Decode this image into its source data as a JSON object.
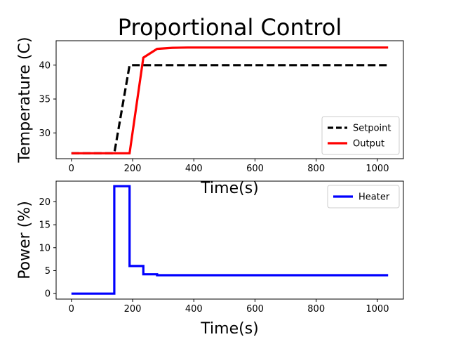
{
  "chart_data": [
    {
      "type": "line",
      "title": "Proportional Control",
      "xlabel": "Time(s)",
      "ylabel": "Temperature (C)",
      "xlim": [
        -50,
        1085
      ],
      "ylim": [
        26.2,
        43.6
      ],
      "xticks": [
        0,
        200,
        400,
        600,
        800,
        1000
      ],
      "yticks": [
        30,
        35,
        40
      ],
      "grid": false,
      "legend_position": "lower-right",
      "series": [
        {
          "name": "Setpoint",
          "color": "#000000",
          "style": "dashed",
          "x": [
            0,
            140,
            190,
            235,
            280,
            1035
          ],
          "y": [
            27,
            27,
            40,
            40,
            40,
            40
          ]
        },
        {
          "name": "Output",
          "color": "#ff0000",
          "style": "solid",
          "x": [
            0,
            140,
            190,
            235,
            280,
            330,
            380,
            1035
          ],
          "y": [
            27,
            27,
            27,
            41.1,
            42.4,
            42.55,
            42.6,
            42.6
          ]
        }
      ]
    },
    {
      "type": "line",
      "title": "",
      "xlabel": "Time(s)",
      "ylabel": "Power (%)",
      "xlim": [
        -50,
        1085
      ],
      "ylim": [
        -1.2,
        24.5
      ],
      "xticks": [
        0,
        200,
        400,
        600,
        800,
        1000
      ],
      "yticks": [
        0,
        5,
        10,
        15,
        20
      ],
      "grid": false,
      "legend_position": "upper-right",
      "series": [
        {
          "name": "Heater",
          "color": "#0000ff",
          "style": "step",
          "x": [
            0,
            140,
            140,
            190,
            190,
            235,
            235,
            280,
            280,
            1035
          ],
          "y": [
            0,
            0,
            23.4,
            23.4,
            6,
            6,
            4.2,
            4.2,
            4,
            4
          ]
        }
      ]
    }
  ]
}
